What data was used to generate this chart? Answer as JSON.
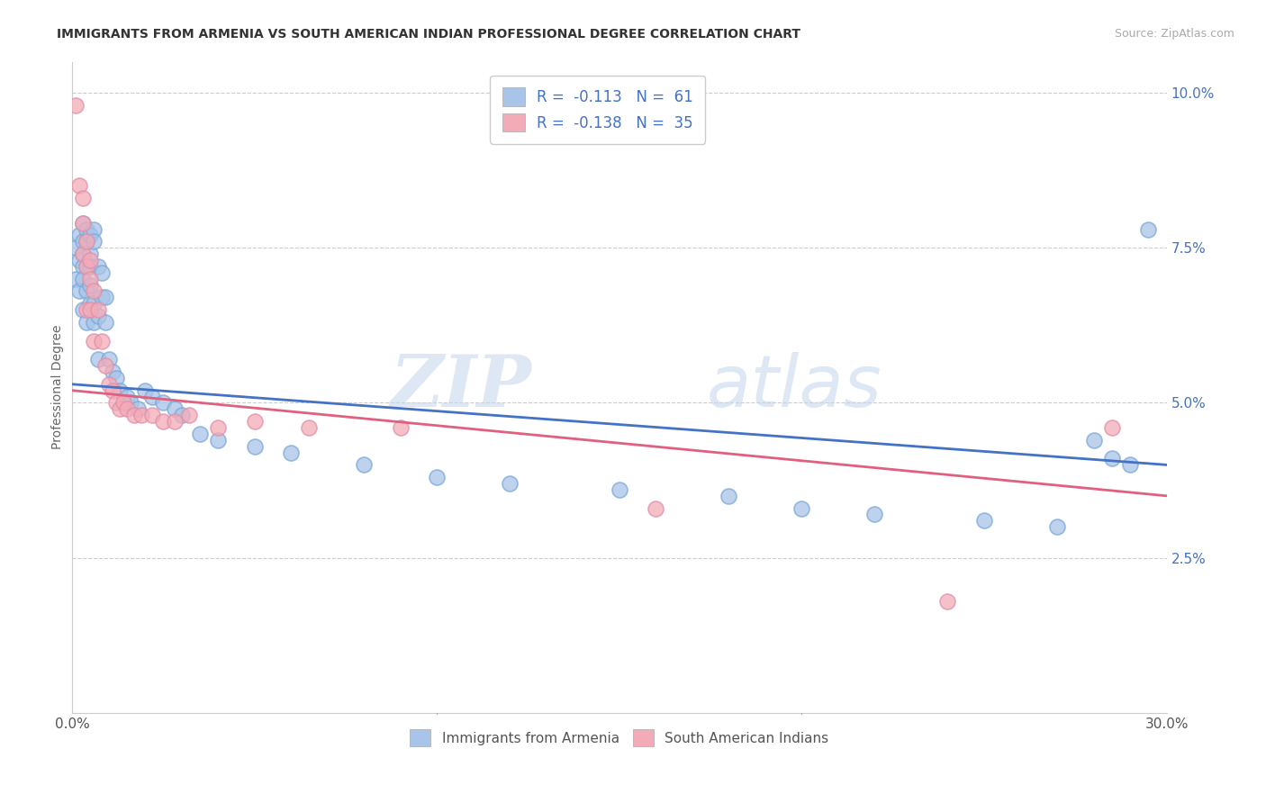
{
  "title": "IMMIGRANTS FROM ARMENIA VS SOUTH AMERICAN INDIAN PROFESSIONAL DEGREE CORRELATION CHART",
  "source": "Source: ZipAtlas.com",
  "ylabel": "Professional Degree",
  "xlim": [
    0.0,
    0.3
  ],
  "ylim": [
    0.0,
    0.105
  ],
  "xtick_positions": [
    0.0,
    0.05,
    0.1,
    0.15,
    0.2,
    0.25,
    0.3
  ],
  "xticklabels": [
    "0.0%",
    "",
    "",
    "",
    "",
    "",
    "30.0%"
  ],
  "ytick_positions": [
    0.0,
    0.025,
    0.05,
    0.075,
    0.1
  ],
  "yticklabels": [
    "",
    "2.5%",
    "5.0%",
    "7.5%",
    "10.0%"
  ],
  "legend1_label": "R =  -0.113   N =  61",
  "legend2_label": "R =  -0.138   N =  35",
  "blue_color": "#a8c4e8",
  "pink_color": "#f4abb8",
  "line_blue": "#4472c4",
  "line_pink": "#e06080",
  "watermark_zip": "ZIP",
  "watermark_atlas": "atlas",
  "legend_bottom_label1": "Immigrants from Armenia",
  "legend_bottom_label2": "South American Indians",
  "blue_x": [
    0.001,
    0.001,
    0.002,
    0.002,
    0.002,
    0.003,
    0.003,
    0.003,
    0.003,
    0.003,
    0.003,
    0.004,
    0.004,
    0.004,
    0.004,
    0.004,
    0.005,
    0.005,
    0.005,
    0.005,
    0.005,
    0.006,
    0.006,
    0.006,
    0.006,
    0.007,
    0.007,
    0.007,
    0.008,
    0.008,
    0.009,
    0.009,
    0.01,
    0.011,
    0.012,
    0.013,
    0.015,
    0.016,
    0.018,
    0.02,
    0.022,
    0.025,
    0.028,
    0.03,
    0.035,
    0.04,
    0.05,
    0.06,
    0.08,
    0.1,
    0.12,
    0.15,
    0.18,
    0.2,
    0.22,
    0.25,
    0.27,
    0.28,
    0.285,
    0.29,
    0.295
  ],
  "blue_y": [
    0.07,
    0.075,
    0.077,
    0.073,
    0.068,
    0.079,
    0.076,
    0.074,
    0.072,
    0.07,
    0.065,
    0.078,
    0.076,
    0.072,
    0.068,
    0.063,
    0.077,
    0.074,
    0.072,
    0.069,
    0.066,
    0.078,
    0.076,
    0.066,
    0.063,
    0.072,
    0.064,
    0.057,
    0.071,
    0.067,
    0.067,
    0.063,
    0.057,
    0.055,
    0.054,
    0.052,
    0.051,
    0.05,
    0.049,
    0.052,
    0.051,
    0.05,
    0.049,
    0.048,
    0.045,
    0.044,
    0.043,
    0.042,
    0.04,
    0.038,
    0.037,
    0.036,
    0.035,
    0.033,
    0.032,
    0.031,
    0.03,
    0.044,
    0.041,
    0.04,
    0.078
  ],
  "pink_x": [
    0.001,
    0.002,
    0.003,
    0.003,
    0.003,
    0.004,
    0.004,
    0.004,
    0.005,
    0.005,
    0.005,
    0.006,
    0.006,
    0.007,
    0.008,
    0.009,
    0.01,
    0.011,
    0.012,
    0.013,
    0.014,
    0.015,
    0.017,
    0.019,
    0.022,
    0.025,
    0.028,
    0.032,
    0.04,
    0.05,
    0.065,
    0.09,
    0.16,
    0.24,
    0.285
  ],
  "pink_y": [
    0.098,
    0.085,
    0.083,
    0.079,
    0.074,
    0.076,
    0.072,
    0.065,
    0.073,
    0.07,
    0.065,
    0.068,
    0.06,
    0.065,
    0.06,
    0.056,
    0.053,
    0.052,
    0.05,
    0.049,
    0.05,
    0.049,
    0.048,
    0.048,
    0.048,
    0.047,
    0.047,
    0.048,
    0.046,
    0.047,
    0.046,
    0.046,
    0.033,
    0.018,
    0.046
  ]
}
